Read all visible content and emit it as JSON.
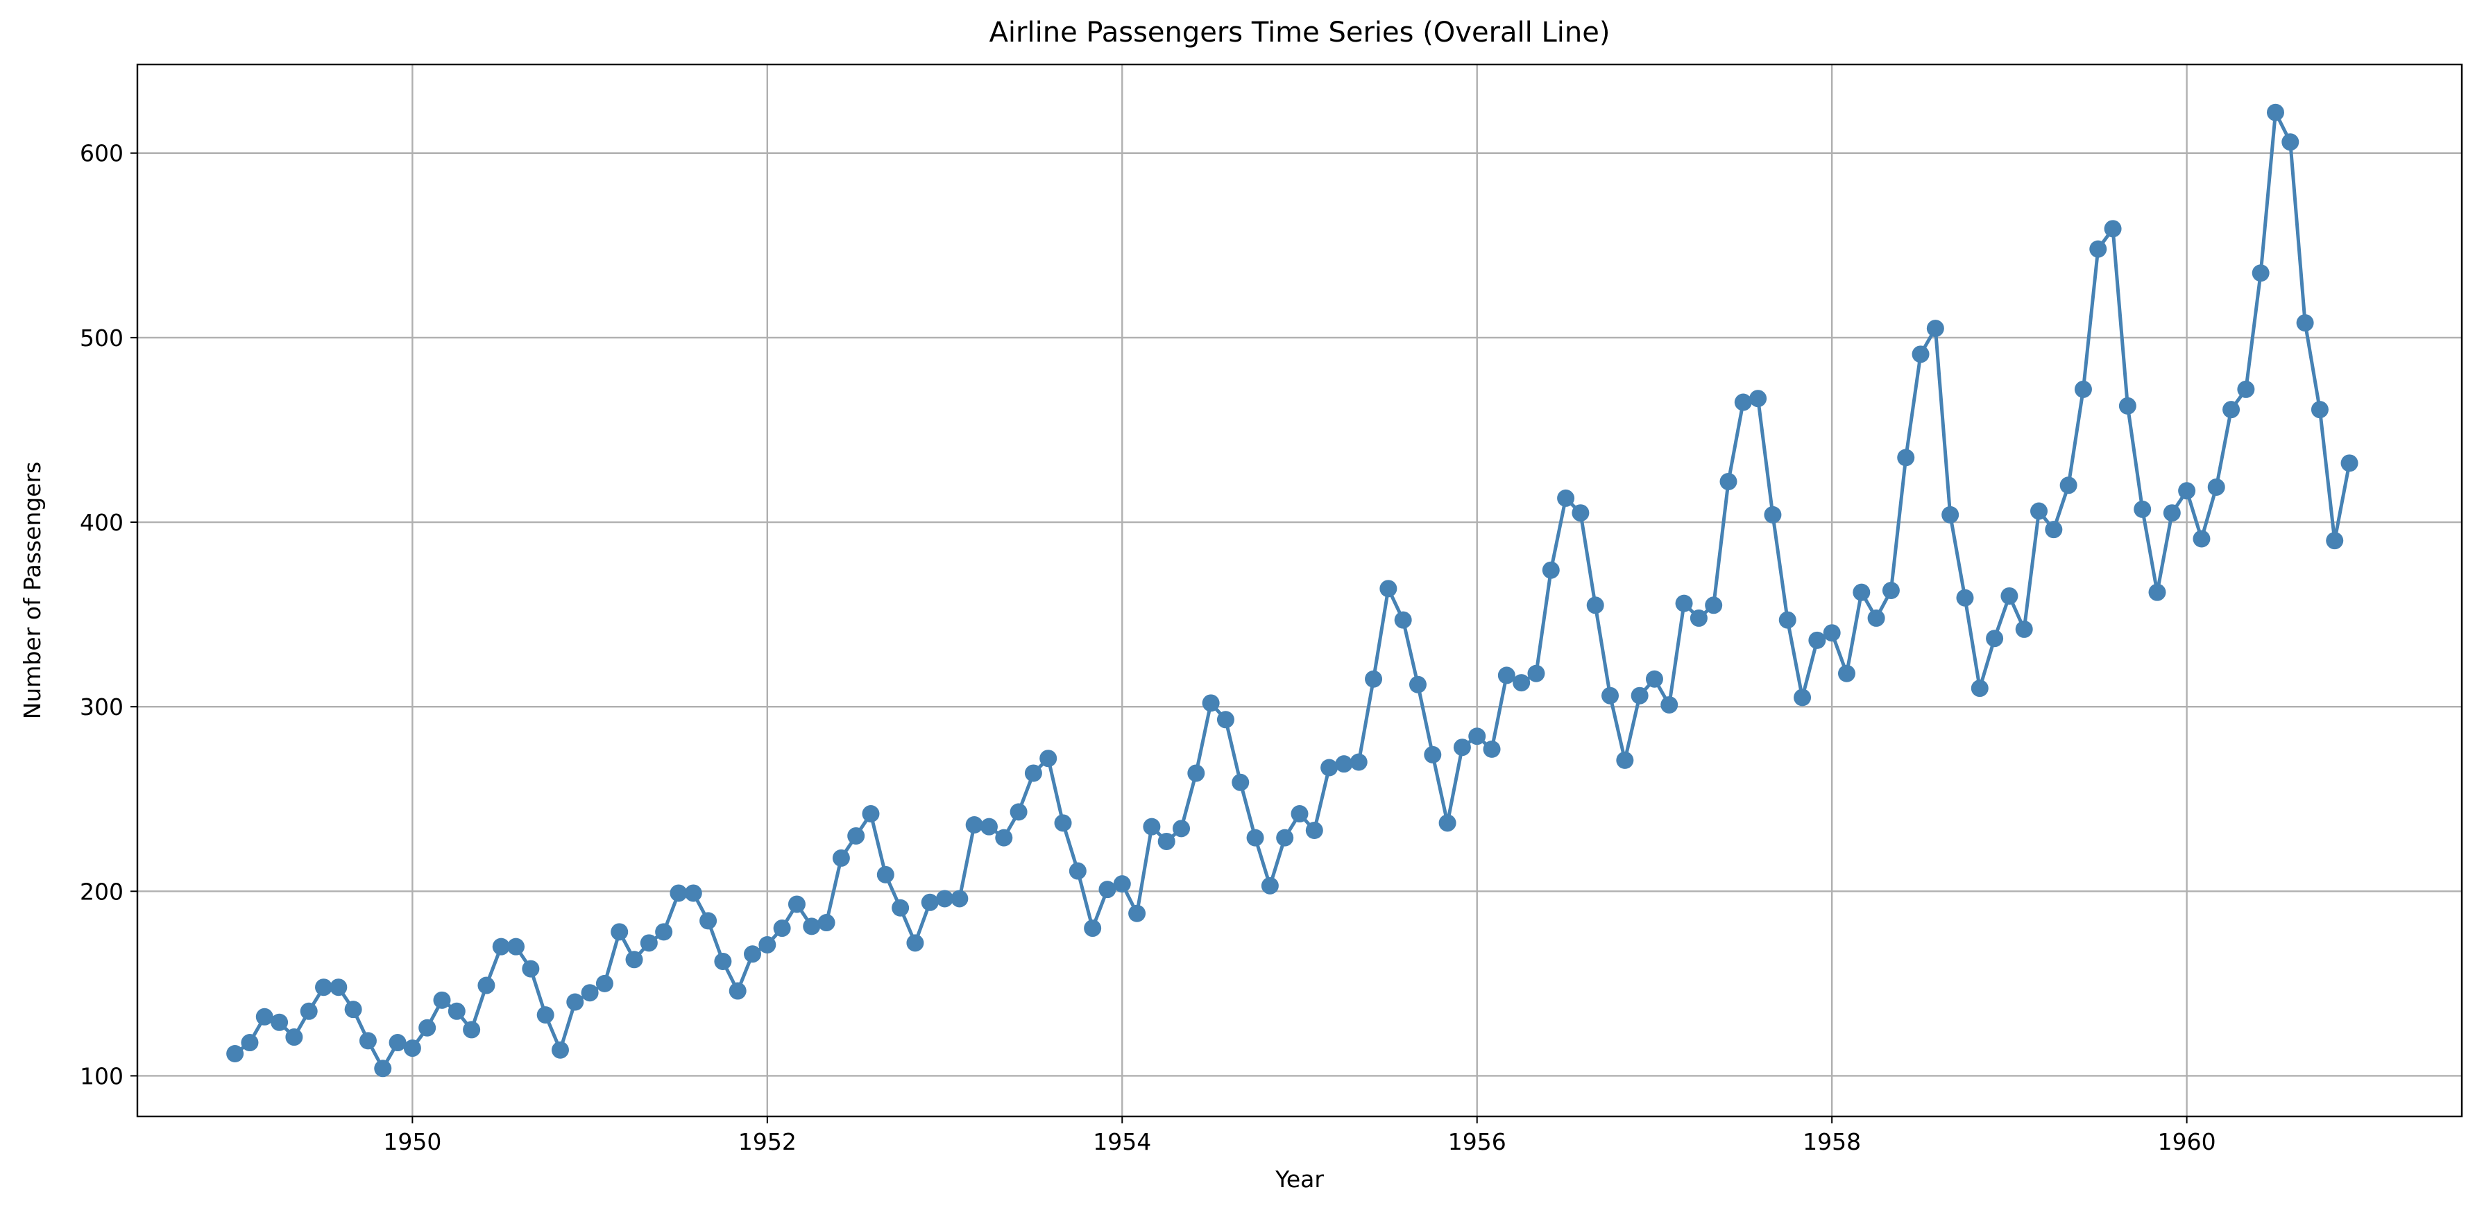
{
  "chart_data": {
    "type": "line",
    "title": "Airline Passengers Time Series (Overall Line)",
    "xlabel": "Year",
    "ylabel": "Number of Passengers",
    "xlim": [
      1948.45,
      1961.55
    ],
    "ylim": [
      78,
      648
    ],
    "x_ticks": [
      1950,
      1952,
      1954,
      1956,
      1958,
      1960
    ],
    "y_ticks": [
      100,
      200,
      300,
      400,
      500,
      600
    ],
    "grid": true,
    "marker": "circle",
    "colors": {
      "series": "#4682b4"
    },
    "series": [
      {
        "x_start": "1949-01",
        "x_step": "1 month",
        "values": [
          112,
          118,
          132,
          129,
          121,
          135,
          148,
          148,
          136,
          119,
          104,
          118,
          115,
          126,
          141,
          135,
          125,
          149,
          170,
          170,
          158,
          133,
          114,
          140,
          145,
          150,
          178,
          163,
          172,
          178,
          199,
          199,
          184,
          162,
          146,
          166,
          171,
          180,
          193,
          181,
          183,
          218,
          230,
          242,
          209,
          191,
          172,
          194,
          196,
          196,
          236,
          235,
          229,
          243,
          264,
          272,
          237,
          211,
          180,
          201,
          204,
          188,
          235,
          227,
          234,
          264,
          302,
          293,
          259,
          229,
          203,
          229,
          242,
          233,
          267,
          269,
          270,
          315,
          364,
          347,
          312,
          274,
          237,
          278,
          284,
          277,
          317,
          313,
          318,
          374,
          413,
          405,
          355,
          306,
          271,
          306,
          315,
          301,
          356,
          348,
          355,
          422,
          465,
          467,
          404,
          347,
          305,
          336,
          340,
          318,
          362,
          348,
          363,
          435,
          491,
          505,
          404,
          359,
          310,
          337,
          360,
          342,
          406,
          396,
          420,
          472,
          548,
          559,
          463,
          407,
          362,
          405,
          417,
          391,
          419,
          461,
          472,
          535,
          622,
          606,
          508,
          461,
          390,
          432
        ]
      }
    ]
  }
}
